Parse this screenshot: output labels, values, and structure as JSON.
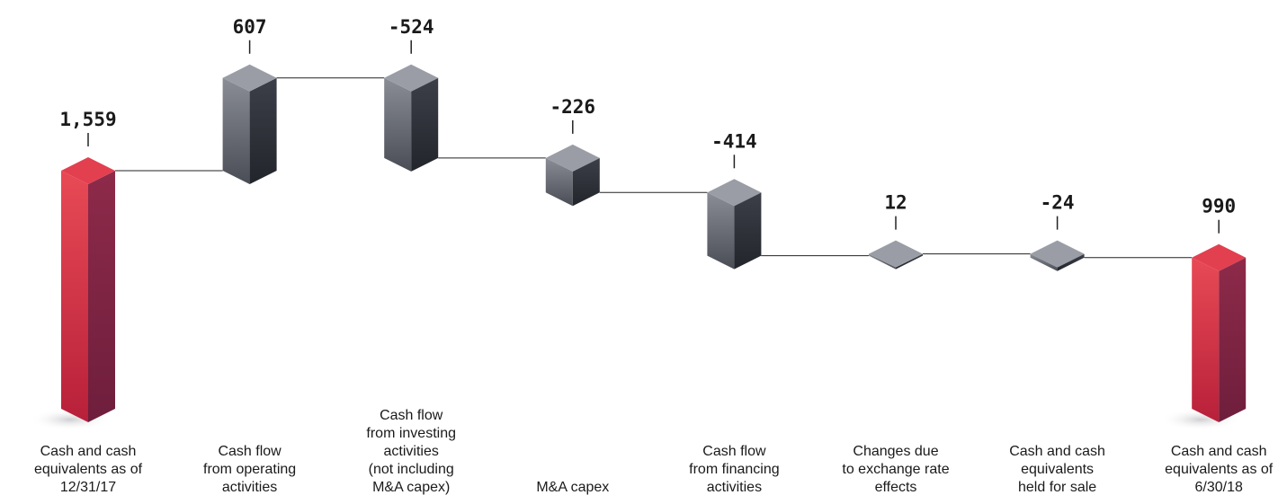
{
  "chart_data": {
    "type": "waterfall",
    "categories": [
      "Cash and cash\nequivalents as of\n12/31/17",
      "Cash flow\nfrom operating\nactivities",
      "Cash flow\nfrom investing\nactivities\n(not including\nM&A capex)",
      "M&A capex",
      "Cash flow\nfrom financing\nactivities",
      "Changes due\nto exchange rate\neffects",
      "Cash and cash\nequivalents\nheld for sale",
      "Cash and cash\nequivalents as of\n6/30/18"
    ],
    "values": [
      1559,
      607,
      -524,
      -226,
      -414,
      12,
      -24,
      990
    ],
    "value_labels": [
      "1,559",
      "607",
      "-524",
      "-226",
      "-414",
      "12",
      "-24",
      "990"
    ],
    "measure": [
      "absolute",
      "relative",
      "relative",
      "relative",
      "relative",
      "relative",
      "relative",
      "absolute"
    ],
    "color": "#5b5e68",
    "total_color": "#d8344a"
  }
}
